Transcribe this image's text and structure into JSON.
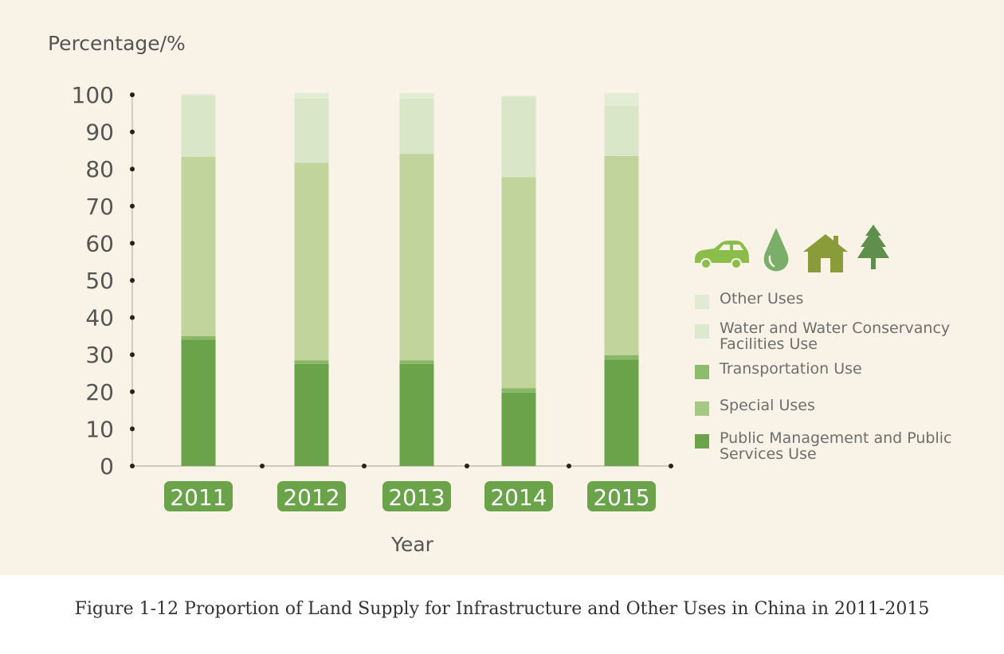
{
  "chart_data": {
    "type": "bar",
    "stacked": true,
    "ylabel": "Percentage/%",
    "xlabel": "Year",
    "ylim": [
      0,
      100
    ],
    "yticks": [
      0,
      10,
      20,
      30,
      40,
      50,
      60,
      70,
      80,
      90,
      100
    ],
    "categories": [
      "2011",
      "2012",
      "2013",
      "2014",
      "2015"
    ],
    "series": [
      {
        "name": "Public Management and Public Services Use",
        "color": "#6aa34a",
        "values": [
          34,
          27.5,
          27.5,
          19.8,
          28.7
        ]
      },
      {
        "name": "Special Uses",
        "color": "#8ab867",
        "values": [
          1,
          1,
          1,
          1.2,
          1.2
        ]
      },
      {
        "name": "Transportation Use",
        "color": "#c0d49b",
        "values": [
          48.3,
          53.2,
          55.6,
          56.8,
          53.6
        ]
      },
      {
        "name": "Water and Water Conservancy Facilities Use",
        "color": "#d9e6c7",
        "values": [
          16.5,
          17.3,
          14.9,
          21.6,
          13.5
        ]
      },
      {
        "name": "Other Uses",
        "color": "#e3ecd5",
        "values": [
          0.4,
          1.5,
          1.5,
          0.4,
          3.5
        ]
      }
    ],
    "legend_order": [
      4,
      3,
      2,
      1,
      0
    ],
    "legend_swatch_colors": [
      "#e1ebd3",
      "#dde9cc",
      "#8fbb6c",
      "#a5c885",
      "#6aa34a"
    ],
    "year_badge_color": "#6aa34a",
    "background_color": "#f8f3e6"
  },
  "icons": [
    "car-icon",
    "water-drop-icon",
    "house-icon",
    "tree-icon"
  ],
  "caption": "Figure 1-12 Proportion of Land Supply for Infrastructure and Other Uses in China in 2011-2015"
}
